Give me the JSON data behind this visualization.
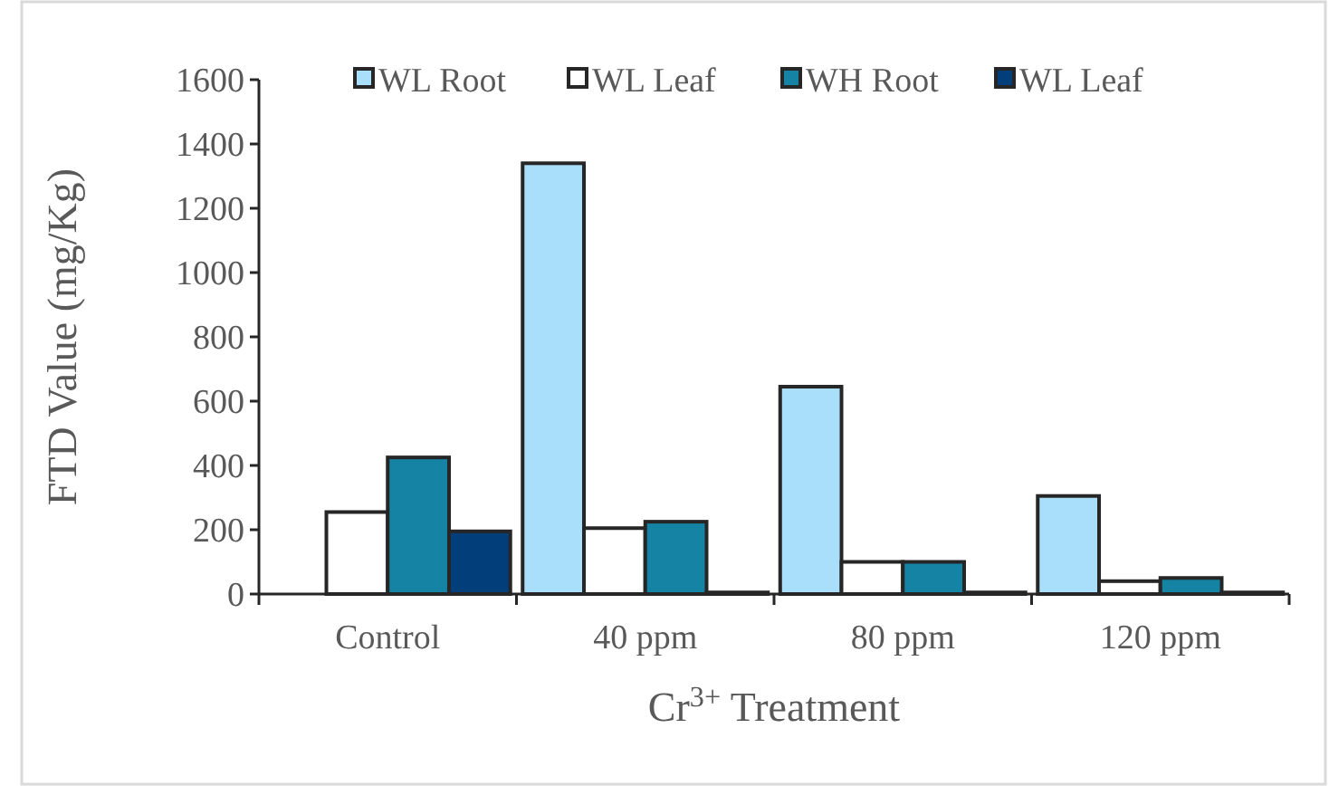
{
  "chart_data": {
    "type": "bar",
    "xlabel": "Cr$^{3+}$ Treatment",
    "ylabel": "FTD Value (mg/Kg)",
    "categories": [
      "Control",
      "40 ppm",
      "80 ppm",
      "120 ppm"
    ],
    "series": [
      {
        "name": "WL Root",
        "color": "#a9dffb",
        "values": [
          0,
          1340,
          645,
          305
        ]
      },
      {
        "name": "WL Leaf",
        "color": "#ffffff",
        "values": [
          255,
          205,
          100,
          40
        ]
      },
      {
        "name": "WH Root",
        "color": "#1583a3",
        "values": [
          425,
          225,
          100,
          50
        ]
      },
      {
        "name": "WL Leaf",
        "color": "#023f7a",
        "values": [
          195,
          5,
          5,
          5
        ]
      }
    ],
    "ylim": [
      0,
      1600
    ],
    "yticks": [
      0,
      200,
      400,
      600,
      800,
      1000,
      1200,
      1400,
      1600
    ],
    "grid": false,
    "legend": "top"
  }
}
